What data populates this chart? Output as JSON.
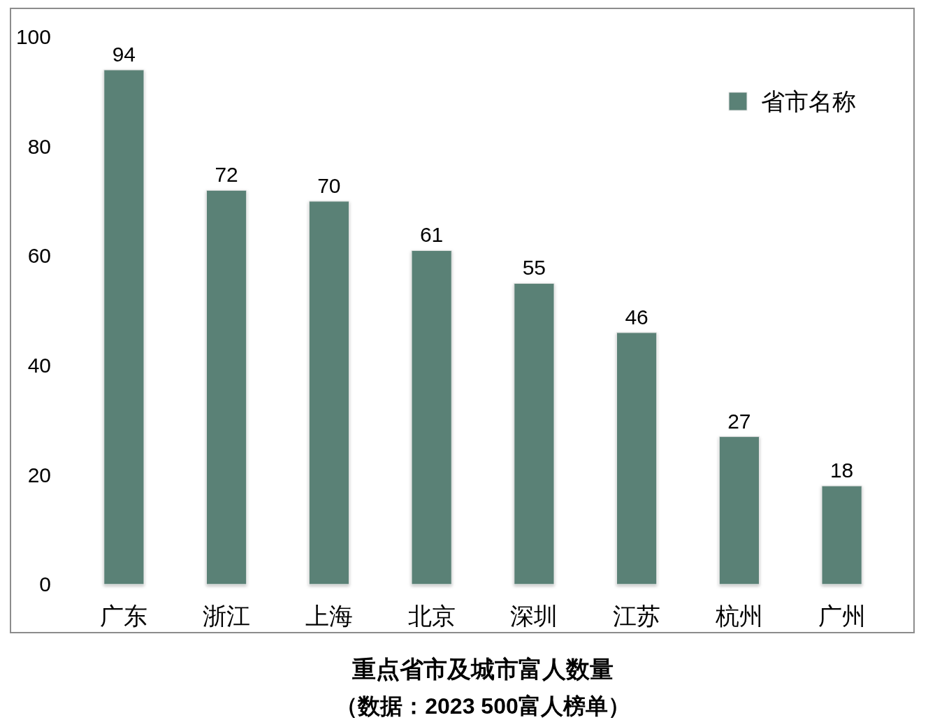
{
  "chart_data": {
    "type": "bar",
    "title": "重点省市及城市富人数量",
    "annotations": [
      "（数据：2023 500富人榜单）"
    ],
    "categories": [
      "广东",
      "浙江",
      "上海",
      "北京",
      "深圳",
      "江苏",
      "杭州",
      "广州"
    ],
    "series": [
      {
        "name": "省市名称",
        "color": "#5a8176",
        "values": [
          94,
          72,
          70,
          61,
          55,
          46,
          27,
          18
        ]
      }
    ],
    "ylim": [
      0,
      100
    ],
    "yticks": [
      0,
      20,
      40,
      60,
      80,
      100
    ],
    "data_labels": true,
    "legend": "top right"
  }
}
